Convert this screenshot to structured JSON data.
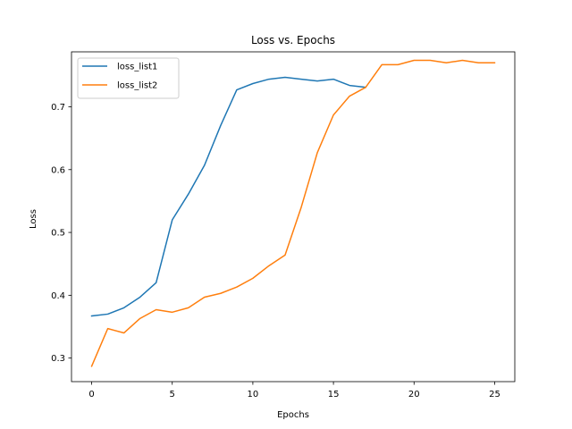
{
  "chart_data": {
    "type": "line",
    "title": "Loss vs. Epochs",
    "xlabel": "Epochs",
    "ylabel": "Loss",
    "xlim": [
      -1.25,
      26.25
    ],
    "ylim": [
      0.2625,
      0.7875
    ],
    "xticks": [
      0,
      5,
      10,
      15,
      20,
      25
    ],
    "yticks": [
      0.3,
      0.4,
      0.5,
      0.6,
      0.7
    ],
    "grid": false,
    "legend_position": "top-left",
    "series": [
      {
        "name": "loss_list1",
        "color": "#1f77b4",
        "x": [
          0,
          1,
          2,
          3,
          4,
          5,
          6,
          7,
          8,
          9,
          10,
          11,
          12,
          13,
          14,
          15,
          16,
          17
        ],
        "values": [
          0.367,
          0.37,
          0.38,
          0.397,
          0.42,
          0.52,
          0.561,
          0.607,
          0.67,
          0.727,
          0.737,
          0.744,
          0.747,
          0.744,
          0.741,
          0.744,
          0.734,
          0.731
        ]
      },
      {
        "name": "loss_list2",
        "color": "#ff7f0e",
        "x": [
          0,
          1,
          2,
          3,
          4,
          5,
          6,
          7,
          8,
          9,
          10,
          11,
          12,
          13,
          14,
          15,
          16,
          17,
          18,
          19,
          20,
          21,
          22,
          23,
          24,
          25
        ],
        "values": [
          0.287,
          0.347,
          0.34,
          0.363,
          0.377,
          0.373,
          0.38,
          0.397,
          0.403,
          0.413,
          0.427,
          0.447,
          0.464,
          0.54,
          0.627,
          0.687,
          0.717,
          0.731,
          0.767,
          0.767,
          0.774,
          0.774,
          0.77,
          0.774,
          0.77,
          0.77
        ]
      }
    ]
  }
}
